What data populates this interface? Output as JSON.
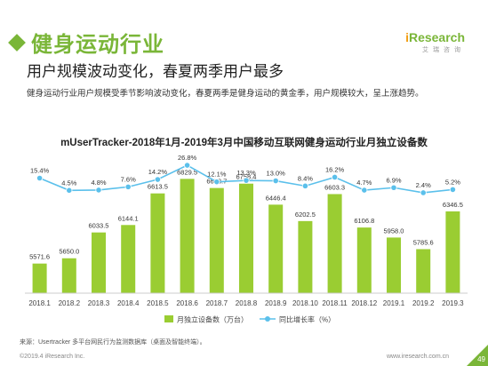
{
  "header": {
    "title": "健身运动行业",
    "subtitle": "用户规模波动变化，春夏两季用户最多",
    "description": "健身运动行业用户规模受季节影响波动变化，春夏两季是健身运动的黄金季，用户规模较大，呈上涨趋势。",
    "logo_prefix": "i",
    "logo_main": "Research",
    "logo_sub": "艾瑞咨询"
  },
  "chart_data": {
    "type": "bar",
    "title": "mUserTracker-2018年1月-2019年3月中国移动互联网健身运动行业月独立设备数",
    "categories": [
      "2018.1",
      "2018.2",
      "2018.3",
      "2018.4",
      "2018.5",
      "2018.6",
      "2018.7",
      "2018.8",
      "2018.9",
      "2018.10",
      "2018.11",
      "2018.12",
      "2019.1",
      "2019.2",
      "2019.3"
    ],
    "series": [
      {
        "name": "月独立设备数（万台）",
        "type": "bar",
        "color": "#9acd32",
        "values": [
          5571.6,
          5650.0,
          6033.5,
          6144.1,
          6613.5,
          6829.5,
          6693.7,
          6758.4,
          6446.4,
          6202.5,
          6603.3,
          6106.8,
          5958.0,
          5785.6,
          6346.5
        ],
        "labels": [
          "5571.6",
          "5650.0",
          "6033.5",
          "6144.1",
          "6613.5",
          "6829.5",
          "6693.7",
          "6758.4",
          "6446.4",
          "6202.5",
          "6603.3",
          "6106.8",
          "5958.0",
          "5785.6",
          "6346.5"
        ]
      },
      {
        "name": "同比增长率（%）",
        "type": "line",
        "color": "#5bc0eb",
        "values": [
          15.4,
          4.5,
          4.8,
          7.6,
          14.2,
          26.8,
          12.1,
          13.3,
          13.0,
          8.4,
          16.2,
          4.7,
          6.9,
          2.4,
          5.2
        ],
        "labels": [
          "15.4%",
          "4.5%",
          "4.8%",
          "7.6%",
          "14.2%",
          "26.8%",
          "12.1%",
          "13.3%",
          "13.0%",
          "8.4%",
          "16.2%",
          "4.7%",
          "6.9%",
          "2.4%",
          "5.2%"
        ]
      }
    ],
    "legend_position": "bottom-center",
    "grid": false
  },
  "footer": {
    "source": "来源：Usertracker 多平台网民行为监测数据库（桌面及智能终端）。",
    "copyright": "©2019.4 iResearch Inc.",
    "website": "www.iresearch.com.cn",
    "page_number": "49"
  }
}
